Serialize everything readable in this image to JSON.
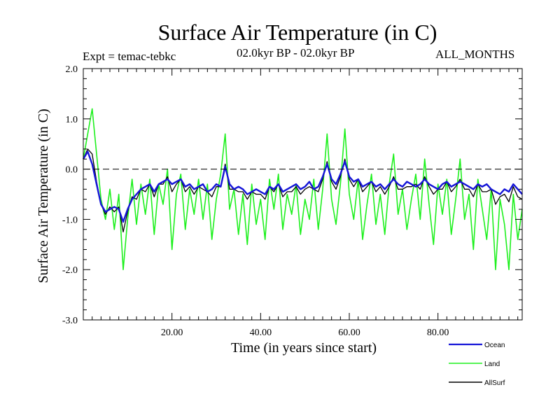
{
  "header": {
    "title": "Surface Air Temperature (in C)",
    "experiment": "Expt = temac-tebkc",
    "period": "02.0kyr BP - 02.0kyr BP",
    "months": "ALL_MONTHS"
  },
  "chart_data": {
    "type": "line",
    "title": "Surface Air Temperature (in C)",
    "xlabel": "Time (in years since start)",
    "ylabel": "Surface Air Temperature (in C)",
    "xlim": [
      0,
      99
    ],
    "ylim": [
      -3.0,
      2.0
    ],
    "xticks": [
      20,
      40,
      60,
      80
    ],
    "xtick_labels": [
      "20.00",
      "40.00",
      "60.00",
      "80.00"
    ],
    "yticks": [
      2.0,
      1.0,
      0.0,
      -1.0,
      -2.0,
      -3.0
    ],
    "ytick_labels": [
      "2.0",
      "1.0",
      "0.0",
      "-1.0",
      "-2.0",
      "-3.0"
    ],
    "reference_line": 0.0,
    "legend_position": "bottom-right",
    "colors": {
      "Ocean": "#1515d8",
      "Land": "#1ef01e",
      "AllSurf": "#000000"
    },
    "series": [
      {
        "name": "Land",
        "x": [
          0,
          1,
          2,
          3,
          4,
          5,
          6,
          7,
          8,
          9,
          10,
          11,
          12,
          13,
          14,
          15,
          16,
          17,
          18,
          19,
          20,
          21,
          22,
          23,
          24,
          25,
          26,
          27,
          28,
          29,
          30,
          31,
          32,
          33,
          34,
          35,
          36,
          37,
          38,
          39,
          40,
          41,
          42,
          43,
          44,
          45,
          46,
          47,
          48,
          49,
          50,
          51,
          52,
          53,
          54,
          55,
          56,
          57,
          58,
          59,
          60,
          61,
          62,
          63,
          64,
          65,
          66,
          67,
          68,
          69,
          70,
          71,
          72,
          73,
          74,
          75,
          76,
          77,
          78,
          79,
          80,
          81,
          82,
          83,
          84,
          85,
          86,
          87,
          88,
          89,
          90,
          91,
          92,
          93,
          94,
          95,
          96,
          97,
          98,
          99
        ],
        "values": [
          0.2,
          0.7,
          1.2,
          0.3,
          -0.6,
          -1.0,
          -0.4,
          -1.2,
          -0.5,
          -2.0,
          -1.0,
          -0.2,
          -1.1,
          -0.3,
          -0.9,
          -0.2,
          -1.3,
          -0.3,
          -0.7,
          0.0,
          -1.6,
          -0.5,
          -0.1,
          -1.2,
          -0.4,
          -0.9,
          -0.2,
          -1.0,
          -0.3,
          -1.4,
          -0.6,
          -0.1,
          0.7,
          -0.8,
          -0.4,
          -1.3,
          -0.5,
          -1.5,
          -0.3,
          -1.1,
          -0.6,
          -1.4,
          -0.2,
          -0.8,
          -0.1,
          -1.2,
          -0.5,
          -0.9,
          -0.3,
          -1.3,
          -0.6,
          -1.0,
          -0.2,
          -1.2,
          -0.4,
          0.7,
          -0.6,
          -1.1,
          -0.3,
          0.8,
          -0.5,
          -1.0,
          -0.2,
          -1.4,
          -0.7,
          -0.1,
          -1.1,
          -0.5,
          -1.3,
          -0.3,
          0.3,
          -0.9,
          -0.4,
          -1.2,
          -0.6,
          -0.1,
          -1.0,
          0.2,
          -0.7,
          -1.5,
          -0.3,
          -0.9,
          -0.2,
          -1.3,
          -0.6,
          0.2,
          -1.0,
          -0.5,
          -1.6,
          -0.2,
          -0.8,
          -1.4,
          -0.4,
          -2.0,
          -0.6,
          -1.1,
          -2.0,
          -0.5,
          -1.4,
          -0.8
        ]
      },
      {
        "name": "Ocean",
        "x": [
          0,
          1,
          2,
          3,
          4,
          5,
          6,
          7,
          8,
          9,
          10,
          11,
          12,
          13,
          14,
          15,
          16,
          17,
          18,
          19,
          20,
          21,
          22,
          23,
          24,
          25,
          26,
          27,
          28,
          29,
          30,
          31,
          32,
          33,
          34,
          35,
          36,
          37,
          38,
          39,
          40,
          41,
          42,
          43,
          44,
          45,
          46,
          47,
          48,
          49,
          50,
          51,
          52,
          53,
          54,
          55,
          56,
          57,
          58,
          59,
          60,
          61,
          62,
          63,
          64,
          65,
          66,
          67,
          68,
          69,
          70,
          71,
          72,
          73,
          74,
          75,
          76,
          77,
          78,
          79,
          80,
          81,
          82,
          83,
          84,
          85,
          86,
          87,
          88,
          89,
          90,
          91,
          92,
          93,
          94,
          95,
          96,
          97,
          98,
          99
        ],
        "values": [
          0.2,
          0.35,
          0.1,
          -0.3,
          -0.7,
          -0.85,
          -0.8,
          -0.75,
          -0.8,
          -1.05,
          -0.8,
          -0.6,
          -0.5,
          -0.4,
          -0.35,
          -0.3,
          -0.45,
          -0.3,
          -0.25,
          -0.2,
          -0.3,
          -0.25,
          -0.2,
          -0.35,
          -0.3,
          -0.4,
          -0.35,
          -0.3,
          -0.45,
          -0.4,
          -0.3,
          -0.35,
          0.05,
          -0.3,
          -0.4,
          -0.35,
          -0.4,
          -0.5,
          -0.45,
          -0.4,
          -0.45,
          -0.5,
          -0.35,
          -0.4,
          -0.3,
          -0.45,
          -0.4,
          -0.35,
          -0.3,
          -0.4,
          -0.35,
          -0.25,
          -0.4,
          -0.35,
          -0.15,
          0.1,
          -0.2,
          -0.3,
          -0.1,
          0.15,
          -0.15,
          -0.25,
          -0.2,
          -0.35,
          -0.3,
          -0.25,
          -0.35,
          -0.3,
          -0.4,
          -0.3,
          -0.2,
          -0.3,
          -0.35,
          -0.25,
          -0.3,
          -0.35,
          -0.3,
          -0.2,
          -0.3,
          -0.35,
          -0.4,
          -0.3,
          -0.25,
          -0.35,
          -0.3,
          -0.25,
          -0.3,
          -0.35,
          -0.4,
          -0.3,
          -0.35,
          -0.3,
          -0.4,
          -0.45,
          -0.5,
          -0.4,
          -0.45,
          -0.3,
          -0.4,
          -0.5
        ]
      },
      {
        "name": "AllSurf",
        "x": [
          0,
          1,
          2,
          3,
          4,
          5,
          6,
          7,
          8,
          9,
          10,
          11,
          12,
          13,
          14,
          15,
          16,
          17,
          18,
          19,
          20,
          21,
          22,
          23,
          24,
          25,
          26,
          27,
          28,
          29,
          30,
          31,
          32,
          33,
          34,
          35,
          36,
          37,
          38,
          39,
          40,
          41,
          42,
          43,
          44,
          45,
          46,
          47,
          48,
          49,
          50,
          51,
          52,
          53,
          54,
          55,
          56,
          57,
          58,
          59,
          60,
          61,
          62,
          63,
          64,
          65,
          66,
          67,
          68,
          69,
          70,
          71,
          72,
          73,
          74,
          75,
          76,
          77,
          78,
          79,
          80,
          81,
          82,
          83,
          84,
          85,
          86,
          87,
          88,
          89,
          90,
          91,
          92,
          93,
          94,
          95,
          96,
          97,
          98,
          99
        ],
        "values": [
          0.2,
          0.4,
          0.3,
          -0.25,
          -0.7,
          -0.9,
          -0.75,
          -0.85,
          -0.75,
          -1.25,
          -0.85,
          -0.55,
          -0.6,
          -0.4,
          -0.45,
          -0.3,
          -0.55,
          -0.3,
          -0.3,
          -0.15,
          -0.45,
          -0.3,
          -0.2,
          -0.45,
          -0.35,
          -0.5,
          -0.35,
          -0.4,
          -0.45,
          -0.55,
          -0.35,
          -0.35,
          0.1,
          -0.4,
          -0.4,
          -0.45,
          -0.45,
          -0.6,
          -0.45,
          -0.5,
          -0.5,
          -0.6,
          -0.35,
          -0.45,
          -0.3,
          -0.55,
          -0.45,
          -0.45,
          -0.35,
          -0.5,
          -0.4,
          -0.35,
          -0.4,
          -0.45,
          -0.2,
          0.15,
          -0.25,
          -0.4,
          -0.15,
          0.2,
          -0.2,
          -0.35,
          -0.2,
          -0.45,
          -0.35,
          -0.25,
          -0.45,
          -0.35,
          -0.5,
          -0.35,
          -0.15,
          -0.4,
          -0.4,
          -0.35,
          -0.35,
          -0.3,
          -0.4,
          -0.15,
          -0.35,
          -0.5,
          -0.4,
          -0.4,
          -0.25,
          -0.45,
          -0.35,
          -0.2,
          -0.4,
          -0.4,
          -0.55,
          -0.3,
          -0.45,
          -0.45,
          -0.4,
          -0.7,
          -0.55,
          -0.5,
          -0.65,
          -0.35,
          -0.55,
          -0.6
        ]
      }
    ]
  }
}
